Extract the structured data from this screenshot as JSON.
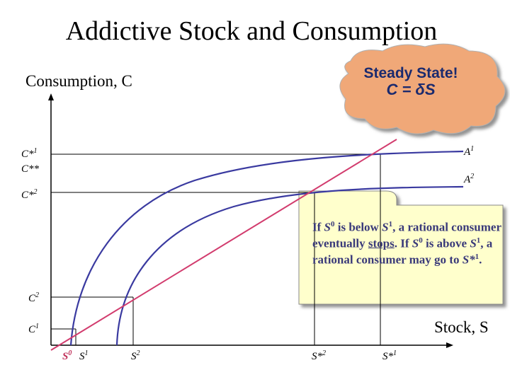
{
  "title": "Addictive Stock and Consumption",
  "axes": {
    "y_label": "Consumption, C",
    "x_label": "Stock, S"
  },
  "cloud": {
    "line1": "Steady State!",
    "line2": "C = δS"
  },
  "note": {
    "s1_pre": "If ",
    "s1_a": "S",
    "s1_a_sup": "0",
    "s1_mid": " is below ",
    "s1_b": "S",
    "s1_b_sup": "1",
    "s1_post": ", a rational consumer eventually ",
    "s1_stops": "stops",
    "s1_end": ".",
    "s2_pre": " If ",
    "s2_a": "S",
    "s2_a_sup": "0",
    "s2_mid": " is above ",
    "s2_b": "S",
    "s2_b_sup": "1",
    "s2_post": ", a rational consumer may go to ",
    "s2_c": "S*",
    "s2_c_sup": "1",
    "s2_end": "."
  },
  "y_ticks": [
    {
      "base": "C*",
      "sup": "1"
    },
    {
      "base": "C**",
      "sup": ""
    },
    {
      "base": "C*",
      "sup": "2"
    },
    {
      "base": "C",
      "sup": "2"
    },
    {
      "base": "C",
      "sup": "1"
    }
  ],
  "x_ticks": [
    {
      "base": "S",
      "sup": "0"
    },
    {
      "base": "S",
      "sup": "1"
    },
    {
      "base": "S",
      "sup": "2"
    },
    {
      "base": "S*",
      "sup": "2"
    },
    {
      "base": "S*",
      "sup": "1"
    }
  ],
  "curve_labels": [
    {
      "base": "A",
      "sup": "1"
    },
    {
      "base": "A",
      "sup": "2"
    }
  ],
  "colors": {
    "curve": "#3a3aa0",
    "steady_state_line": "#d23c6e",
    "cloud_fill": "#f0a878",
    "note_fill": "#ffffcc"
  }
}
